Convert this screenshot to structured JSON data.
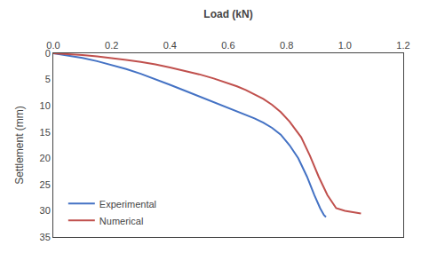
{
  "chart_data": {
    "type": "line",
    "xlabel": "Load (kN)",
    "ylabel": "Settlement (mm)",
    "series": [
      {
        "name": "Experimental",
        "color": "#4472c4",
        "x": [
          0.0,
          0.05,
          0.1,
          0.15,
          0.2,
          0.25,
          0.3,
          0.35,
          0.4,
          0.45,
          0.5,
          0.55,
          0.6,
          0.63,
          0.66,
          0.69,
          0.72,
          0.75,
          0.78,
          0.81,
          0.84,
          0.87,
          0.895,
          0.915,
          0.928,
          0.935
        ],
        "values": [
          0.0,
          0.4,
          0.9,
          1.5,
          2.2,
          3.0,
          3.9,
          4.9,
          6.0,
          7.1,
          8.2,
          9.3,
          10.3,
          11.0,
          11.7,
          12.4,
          13.2,
          14.2,
          15.5,
          17.5,
          20.0,
          23.5,
          27.0,
          29.5,
          30.8,
          31.2
        ]
      },
      {
        "name": "Numerical",
        "color": "#c0504d",
        "x": [
          0.0,
          0.05,
          0.1,
          0.15,
          0.2,
          0.25,
          0.3,
          0.35,
          0.4,
          0.45,
          0.5,
          0.55,
          0.6,
          0.63,
          0.66,
          0.69,
          0.72,
          0.75,
          0.78,
          0.81,
          0.85,
          0.88,
          0.91,
          0.94,
          0.97,
          1.0,
          1.03,
          1.05,
          1.055
        ],
        "values": [
          0.0,
          0.15,
          0.35,
          0.6,
          0.9,
          1.25,
          1.65,
          2.1,
          2.7,
          3.3,
          4.0,
          4.8,
          5.7,
          6.3,
          7.0,
          7.8,
          8.7,
          9.8,
          11.2,
          13.0,
          16.0,
          19.5,
          23.5,
          27.0,
          29.5,
          30.0,
          30.3,
          30.5,
          30.5
        ]
      }
    ],
    "xlim": [
      0.0,
      1.2
    ],
    "ylim": [
      35,
      0
    ],
    "xticks": [
      {
        "value": 0.0,
        "label": "0.0"
      },
      0.2,
      0.4,
      0.6,
      0.8,
      {
        "value": 1.0,
        "label": "1.0"
      },
      1.2
    ],
    "yticks": [
      0,
      5,
      10,
      15,
      20,
      25,
      30,
      35
    ],
    "legend": "lower left",
    "grid": false
  }
}
